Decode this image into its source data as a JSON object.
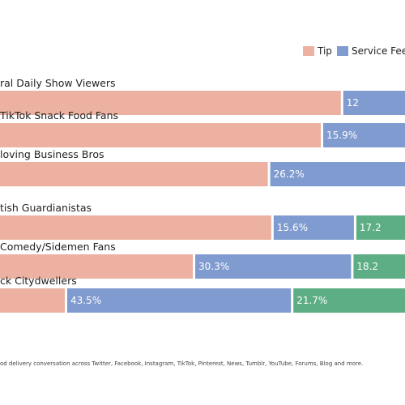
{
  "chart_data": {
    "type": "bar",
    "orientation": "horizontal",
    "stacked": true,
    "legend_position": "top-right",
    "grid": false,
    "xlim": [
      0,
      100
    ],
    "series": [
      {
        "name": "Tip",
        "color": "#ecb1a1",
        "values": [
          null,
          null,
          null,
          null,
          null,
          null
        ]
      },
      {
        "name": "Service Fee",
        "color": "#7f9bcf",
        "values": [
          12,
          15.9,
          26.2,
          15.6,
          30.3,
          43.5
        ]
      },
      {
        "name": "",
        "color": "#5dad85",
        "values": [
          null,
          null,
          null,
          17.2,
          18.2,
          21.7
        ]
      }
    ],
    "categories": [
      "ral Daily Show Viewers",
      "TikTok Snack Food Fans",
      "loving Business Bros",
      "tish Guardianistas",
      "Comedy/Sidemen Fans",
      "ck Citydwellers"
    ],
    "value_labels": [
      [
        "",
        "12",
        ""
      ],
      [
        "",
        "15.9%",
        ""
      ],
      [
        "",
        "26.2%",
        ""
      ],
      [
        "",
        "15.6%",
        "17.2"
      ],
      [
        "",
        "30.3%",
        "18.2"
      ],
      [
        "",
        "43.5%",
        "21.7%"
      ]
    ],
    "footnote": "od delivery conversation across Twitter, Facebook, Instagram, TikTok, Pinterest, News, Tumblr, YouTube, Forums, Blog and more."
  }
}
